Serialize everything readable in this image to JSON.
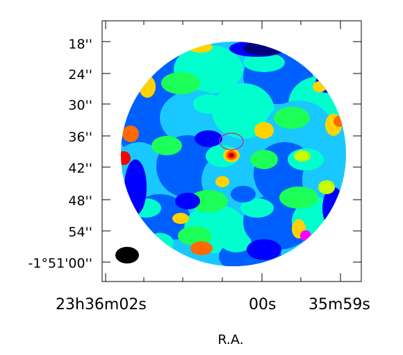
{
  "chart_data": {
    "type": "heatmap",
    "title": "",
    "xlabel": "R.A.",
    "ylabel": "",
    "colormap": [
      "#00007f",
      "#0000ff",
      "#0060ff",
      "#19c8ff",
      "#00ffcc",
      "#1bff58",
      "#c8ff00",
      "#ffd200",
      "#ff6a00",
      "#ff0000",
      "#7f0000",
      "#ff00ff"
    ],
    "x_ticks": [
      {
        "value_s": 2.0,
        "text": "23h36m02s"
      },
      {
        "value_s": 0.0,
        "text": "00s"
      },
      {
        "value_s": -1.0,
        "text": "35m59s"
      }
    ],
    "y_ticks": [
      {
        "value_arcsec": 18,
        "text": "18''"
      },
      {
        "value_arcsec": 24,
        "text": "24''"
      },
      {
        "value_arcsec": 30,
        "text": "30''"
      },
      {
        "value_arcsec": 36,
        "text": "36''"
      },
      {
        "value_arcsec": 42,
        "text": "42''"
      },
      {
        "value_arcsec": 48,
        "text": "48''"
      },
      {
        "value_arcsec": 54,
        "text": "54''"
      },
      {
        "value_arcsec": 60,
        "text": "-1°51'00''"
      }
    ],
    "grid": false,
    "features": {
      "beam": "bottom-left",
      "target_marker": "magenta ellipse near center",
      "field": "circular"
    }
  }
}
